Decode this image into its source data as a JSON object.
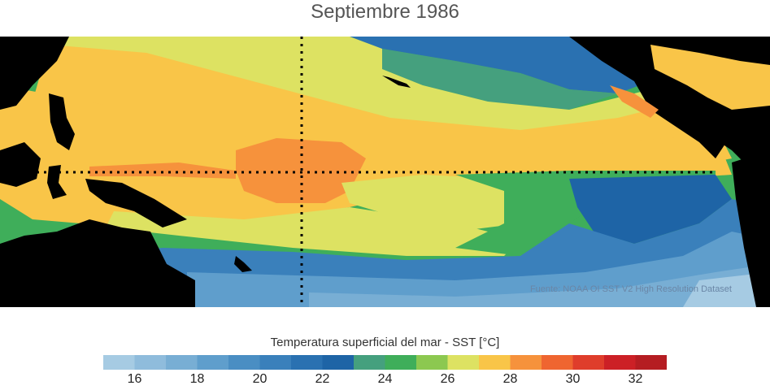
{
  "title": "Septiembre 1986",
  "source": "Fuente: NOAA OI SST V2 High Resolution Dataset",
  "colorbar": {
    "label": "Temperatura superficial del mar - SST  [°C]",
    "min": 15,
    "max": 33,
    "colors": [
      "#a6cbe3",
      "#8fbcdc",
      "#78aed4",
      "#5f9ecc",
      "#4a8ec3",
      "#3a80bb",
      "#2a71b1",
      "#1e64a6",
      "#45a07e",
      "#3fae5a",
      "#8cc850",
      "#dde262",
      "#f9c548",
      "#f6923c",
      "#ef6530",
      "#df3d2b",
      "#cc2026",
      "#b51d22"
    ],
    "tick_labels": [
      "16",
      "18",
      "20",
      "22",
      "24",
      "26",
      "28",
      "30",
      "32"
    ],
    "tick_values": [
      16,
      18,
      20,
      22,
      24,
      26,
      28,
      30,
      32
    ]
  },
  "palette": {
    "land": "#000000",
    "warm_pool": "#f6923c",
    "warm": "#f9c548",
    "mild": "#dde262",
    "green": "#8cc850",
    "green_dark": "#3fae5a",
    "teal": "#45a07e",
    "blue_dark": "#1e64a6",
    "blue": "#3a80bb",
    "blue_mid": "#5f9ecc",
    "blue_light": "#78aed4",
    "blue_pale": "#a6cbe3"
  }
}
